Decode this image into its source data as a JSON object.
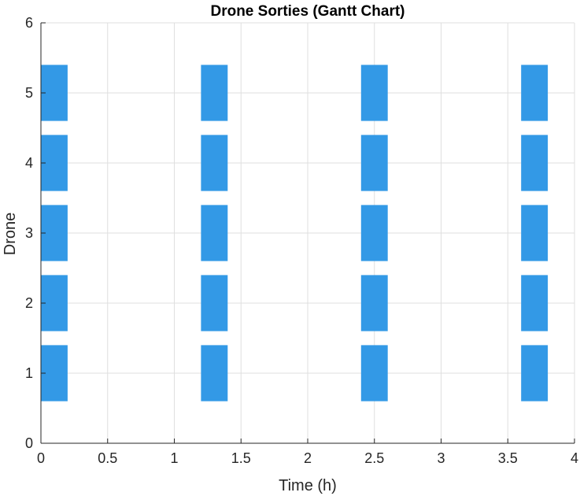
{
  "chart_data": {
    "type": "bar",
    "orientation": "horizontal-gantt",
    "title": "Drone Sorties (Gantt Chart)",
    "xlabel": "Time (h)",
    "ylabel": "Drone",
    "xlim": [
      0,
      4
    ],
    "ylim": [
      0,
      6
    ],
    "xticks": [
      "0",
      "0.5",
      "1",
      "1.5",
      "2",
      "2.5",
      "3",
      "3.5",
      "4"
    ],
    "yticks": [
      "0",
      "1",
      "2",
      "3",
      "4",
      "5",
      "6"
    ],
    "grid": true,
    "bar_color": "#3399e6",
    "sorties": [
      {
        "drone": 1,
        "start": 0.0,
        "end": 0.2
      },
      {
        "drone": 1,
        "start": 1.2,
        "end": 1.4
      },
      {
        "drone": 1,
        "start": 2.4,
        "end": 2.6
      },
      {
        "drone": 1,
        "start": 3.6,
        "end": 3.8
      },
      {
        "drone": 2,
        "start": 0.0,
        "end": 0.2
      },
      {
        "drone": 2,
        "start": 1.2,
        "end": 1.4
      },
      {
        "drone": 2,
        "start": 2.4,
        "end": 2.6
      },
      {
        "drone": 2,
        "start": 3.6,
        "end": 3.8
      },
      {
        "drone": 3,
        "start": 0.0,
        "end": 0.2
      },
      {
        "drone": 3,
        "start": 1.2,
        "end": 1.4
      },
      {
        "drone": 3,
        "start": 2.4,
        "end": 2.6
      },
      {
        "drone": 3,
        "start": 3.6,
        "end": 3.8
      },
      {
        "drone": 4,
        "start": 0.0,
        "end": 0.2
      },
      {
        "drone": 4,
        "start": 1.2,
        "end": 1.4
      },
      {
        "drone": 4,
        "start": 2.4,
        "end": 2.6
      },
      {
        "drone": 4,
        "start": 3.6,
        "end": 3.8
      },
      {
        "drone": 5,
        "start": 0.0,
        "end": 0.2
      },
      {
        "drone": 5,
        "start": 1.2,
        "end": 1.4
      },
      {
        "drone": 5,
        "start": 2.4,
        "end": 2.6
      },
      {
        "drone": 5,
        "start": 3.6,
        "end": 3.8
      }
    ]
  }
}
